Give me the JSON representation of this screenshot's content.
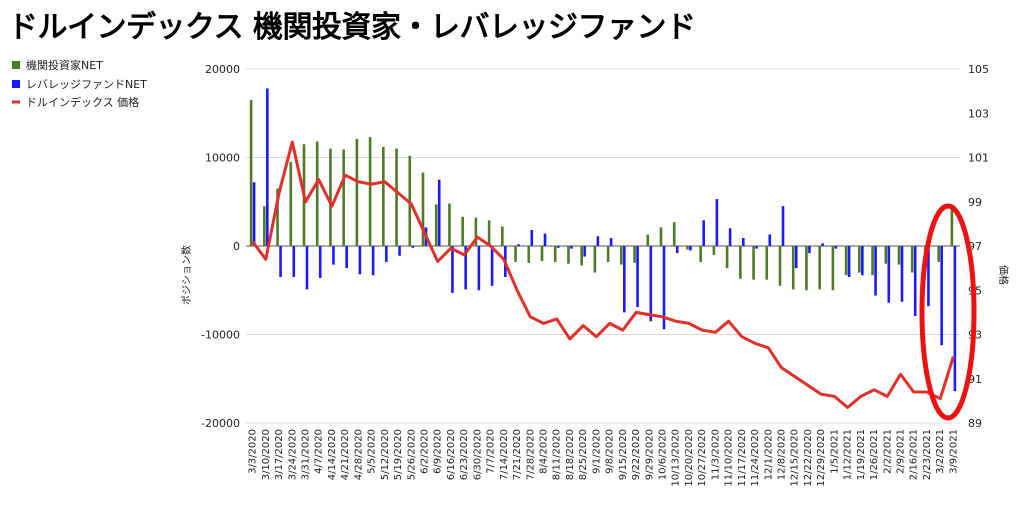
{
  "chart_data": {
    "type": "bar+line",
    "title": "ドルインデックス 機関投資家・レバレッジファンド",
    "ylabel_left": "ポジション数",
    "ylabel_right": "価格",
    "ylim_left": [
      -20000,
      20000
    ],
    "yticks_left": [
      "20000",
      "10000",
      "0",
      "-10000",
      "-20000"
    ],
    "ylim_right": [
      89,
      105
    ],
    "yticks_right": [
      "105",
      "103",
      "101",
      "99",
      "97",
      "95",
      "93",
      "91",
      "89"
    ],
    "legend_position": "top-left",
    "x_tick_labels": [
      "3/3/2020",
      "3/10/2020",
      "3/17/2020",
      "3/24/2020",
      "3/31/2020",
      "4/7/2020",
      "4/14/2020",
      "4/21/2020",
      "4/28/2020",
      "5/5/2020",
      "5/12/2020",
      "5/19/2020",
      "5/26/2020",
      "6/2/2020",
      "6/9/2020",
      "6/16/2020",
      "6/23/2020",
      "6/30/2020",
      "7/7/2020",
      "7/14/2020",
      "7/21/2020",
      "7/28/2020",
      "8/4/2020",
      "8/11/2020",
      "8/18/2020",
      "8/25/2020",
      "9/1/2020",
      "9/8/2020",
      "9/15/2020",
      "9/22/2020",
      "9/29/2020",
      "10/6/2020",
      "10/13/2020",
      "10/20/2020",
      "10/27/2020",
      "11/3/2020",
      "11/10/2020",
      "11/17/2020",
      "11/24/2020",
      "12/1/2020",
      "12/8/2020",
      "12/15/2020",
      "12/22/2020",
      "12/29/2020",
      "1/5/2021",
      "1/12/2021",
      "1/19/2021",
      "1/26/2021",
      "2/2/2021",
      "2/9/2021",
      "2/16/2021",
      "2/23/2021",
      "3/2/2021",
      "3/9/2021"
    ],
    "series": [
      {
        "name": "機関投資家NET",
        "kind": "bar",
        "color": "#4f7a28",
        "values": [
          16500,
          4500,
          6500,
          9500,
          11500,
          11800,
          11000,
          10900,
          12100,
          12300,
          11200,
          11000,
          10200,
          8300,
          4700,
          4800,
          3300,
          3200,
          2900,
          2200,
          -1800,
          -1900,
          -1700,
          -1800,
          -2000,
          -2200,
          -3000,
          -1800,
          -2100,
          -1900,
          1300,
          2100,
          2700,
          -400,
          -1800,
          -1000,
          -2500,
          -3700,
          -3800,
          -3800,
          -4500,
          -4900,
          -5000,
          -4900,
          -5000,
          -3300,
          -3000,
          -3300,
          -2000,
          -2100,
          -3000,
          -1500,
          -1800,
          4200
        ]
      },
      {
        "name": "レバレッジファンドNET",
        "kind": "bar",
        "color": "#1a1aff",
        "values": [
          7200,
          17800,
          -3500,
          -3500,
          -4900,
          -3600,
          -2100,
          -2500,
          -3200,
          -3300,
          -1800,
          -1100,
          -200,
          2100,
          7500,
          -5300,
          -4900,
          -5000,
          -4500,
          -3500,
          200,
          1800,
          1400,
          -200,
          -300,
          -1200,
          1100,
          900,
          -7500,
          -6900,
          -8500,
          -9400,
          -800,
          -500,
          2900,
          5300,
          2000,
          900,
          -300,
          1300,
          4500,
          -2500,
          -800,
          300,
          -300,
          -3500,
          -3300,
          -5600,
          -6400,
          -6300,
          -7900,
          -6800,
          -11200,
          -16400
        ]
      },
      {
        "name": "ドルインデックス 価格",
        "kind": "line",
        "color": "#e0302a",
        "values": [
          97.2,
          96.4,
          99.4,
          101.7,
          99.0,
          100.0,
          98.8,
          100.2,
          99.9,
          99.8,
          99.9,
          99.4,
          98.9,
          97.6,
          96.3,
          96.9,
          96.6,
          97.4,
          97.0,
          96.4,
          95.0,
          93.8,
          93.5,
          93.7,
          92.8,
          93.4,
          92.9,
          93.5,
          93.2,
          94.0,
          93.9,
          93.8,
          93.6,
          93.5,
          93.2,
          93.1,
          93.6,
          92.9,
          92.6,
          92.4,
          91.5,
          91.1,
          90.7,
          90.3,
          90.2,
          89.7,
          90.2,
          90.5,
          90.2,
          91.2,
          90.4,
          90.4,
          90.1,
          92.0
        ]
      }
    ]
  }
}
